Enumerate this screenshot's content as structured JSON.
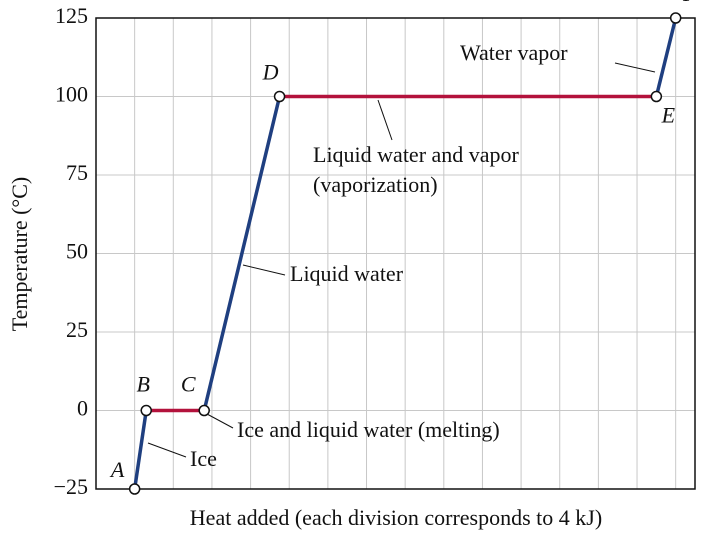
{
  "chart_data": {
    "type": "line",
    "y_label": "Temperature (°C)",
    "x_label": "Heat added (each division corresponds to 4 kJ)",
    "xlim": [
      0,
      15.5
    ],
    "xticks": [
      1,
      2,
      3,
      4,
      5,
      6,
      7,
      8,
      9,
      10,
      11,
      12,
      13,
      14,
      15
    ],
    "ylim": [
      -25,
      125
    ],
    "yticks": [
      {
        "value": -25,
        "label": "−25"
      },
      0,
      25,
      50,
      75,
      100,
      125
    ],
    "grid": true,
    "x": [
      1,
      1.3,
      2.8,
      4.75,
      14.5,
      15
    ],
    "series": [
      {
        "values": [
          -25,
          0,
          0,
          100,
          100,
          125
        ],
        "point_labels": [
          "A",
          "B",
          "C",
          "D",
          "E",
          "F"
        ],
        "segment_colors": [
          "#1f3f80",
          "#b3123c",
          "#1f3f80",
          "#b3123c",
          "#1f3f80"
        ]
      }
    ],
    "annotations": [
      [
        "Ice"
      ],
      [
        "Ice and liquid water (melting)"
      ],
      [
        "Liquid water"
      ],
      [
        "Liquid water and vapor",
        "(vaporization)"
      ],
      [
        "Water vapor"
      ]
    ]
  }
}
